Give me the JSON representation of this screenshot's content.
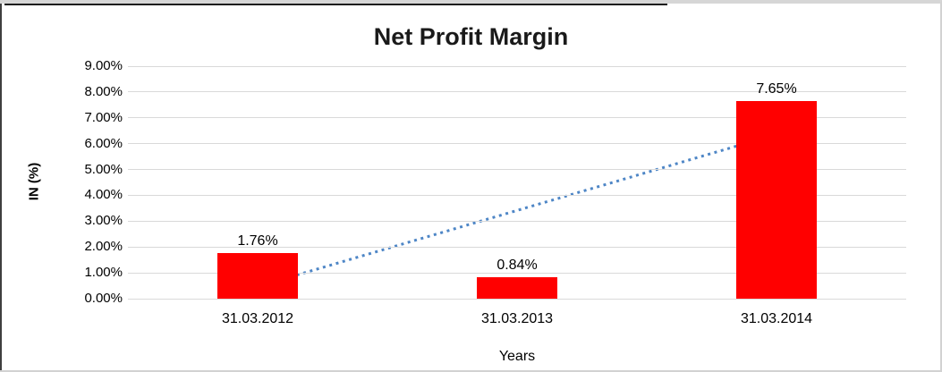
{
  "chart_data": {
    "type": "bar",
    "title": "Net Profit Margin",
    "categories": [
      "31.03.2012",
      "31.03.2013",
      "31.03.2014"
    ],
    "values": [
      1.76,
      0.84,
      7.65
    ],
    "value_labels": [
      "1.76%",
      "0.84%",
      "7.65%"
    ],
    "xlabel": "Years",
    "ylabel": "IN (%)",
    "ylim": [
      0,
      9
    ],
    "ytick_step": 1,
    "ytick_labels": [
      "0.00%",
      "1.00%",
      "2.00%",
      "3.00%",
      "4.00%",
      "5.00%",
      "6.00%",
      "7.00%",
      "8.00%",
      "9.00%"
    ],
    "grid": true,
    "legend": "none",
    "bar_color": "#ff0000",
    "trendline": {
      "type": "linear",
      "style": "dotted",
      "color": "#4e86c6",
      "start_value": 0.47,
      "end_value": 6.36
    }
  }
}
